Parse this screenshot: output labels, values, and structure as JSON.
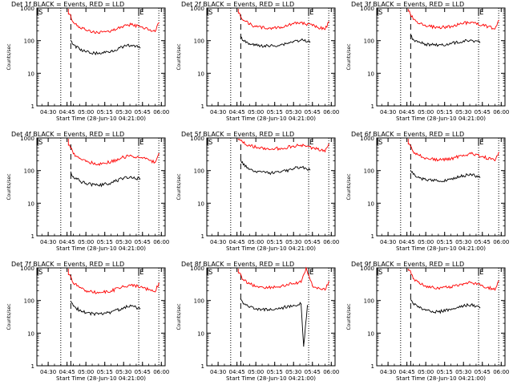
{
  "colors": {
    "events": "#000000",
    "lld": "#ff0000",
    "axes": "#000000"
  },
  "chart_data": [
    {
      "type": "line",
      "title": "Det 1f BLACK = Events, RED = LLD",
      "xlabel": "Start Time (28-Jun-10 04:21:00)",
      "ylabel": "Counts/sec",
      "x_ticks": [
        "04:30",
        "04:45",
        "05:00",
        "05:15",
        "05:30",
        "05:45",
        "06:00"
      ],
      "y_ticks": [
        "1",
        "10",
        "100",
        "1000"
      ],
      "yscale": "log",
      "ylim": [
        1,
        1000
      ],
      "xlim_minutes": [
        0,
        102
      ],
      "markers": {
        "start": "S",
        "end": "E"
      },
      "dotted_lines": [
        "04:40",
        "05:42",
        "05:58"
      ],
      "dashed_line": "04:48",
      "series": [
        {
          "name": "LLD",
          "x": [
            "04:47",
            "04:50",
            "04:55",
            "05:00",
            "05:10",
            "05:20",
            "05:30",
            "05:36",
            "05:45",
            "05:55",
            "05:58"
          ],
          "values": [
            650,
            360,
            260,
            210,
            170,
            200,
            280,
            310,
            260,
            190,
            350
          ]
        },
        {
          "name": "Events",
          "x": [
            "04:48",
            "04:50",
            "04:55",
            "05:00",
            "05:10",
            "05:20",
            "05:30",
            "05:36",
            "05:43"
          ],
          "values": [
            100,
            75,
            55,
            45,
            40,
            48,
            65,
            72,
            60
          ]
        }
      ]
    },
    {
      "type": "line",
      "title": "Det 2f BLACK = Events, RED = LLD",
      "xlabel": "Start Time (28-Jun-10 04:21:00)",
      "ylabel": "Counts/sec",
      "x_ticks": [
        "04:30",
        "04:45",
        "05:00",
        "05:15",
        "05:30",
        "05:45",
        "06:00"
      ],
      "y_ticks": [
        "1",
        "10",
        "100",
        "1000"
      ],
      "yscale": "log",
      "ylim": [
        1,
        1000
      ],
      "xlim_minutes": [
        0,
        102
      ],
      "markers": {
        "start": "S",
        "end": "E"
      },
      "dotted_lines": [
        "04:40",
        "05:42",
        "05:58"
      ],
      "dashed_line": "04:48",
      "series": [
        {
          "name": "LLD",
          "x": [
            "04:47",
            "04:50",
            "04:55",
            "05:00",
            "05:10",
            "05:20",
            "05:30",
            "05:36",
            "05:45",
            "05:55",
            "05:58"
          ],
          "values": [
            700,
            420,
            320,
            270,
            240,
            260,
            330,
            360,
            290,
            220,
            380
          ]
        },
        {
          "name": "Events",
          "x": [
            "04:48",
            "04:50",
            "04:55",
            "05:00",
            "05:10",
            "05:20",
            "05:30",
            "05:36",
            "05:43"
          ],
          "values": [
            130,
            100,
            80,
            72,
            68,
            75,
            95,
            105,
            90
          ]
        }
      ]
    },
    {
      "type": "line",
      "title": "Det 3f BLACK = Events, RED = LLD",
      "xlabel": "Start Time (28-Jun-10 04:21:00)",
      "ylabel": "Counts/sec",
      "x_ticks": [
        "04:30",
        "04:45",
        "05:00",
        "05:15",
        "05:30",
        "05:45",
        "06:00"
      ],
      "y_ticks": [
        "1",
        "10",
        "100",
        "1000"
      ],
      "yscale": "log",
      "ylim": [
        1,
        1000
      ],
      "xlim_minutes": [
        0,
        102
      ],
      "markers": {
        "start": "S",
        "end": "E"
      },
      "dotted_lines": [
        "04:40",
        "05:42",
        "05:58"
      ],
      "dashed_line": "04:48",
      "series": [
        {
          "name": "LLD",
          "x": [
            "04:47",
            "04:50",
            "04:55",
            "05:00",
            "05:10",
            "05:20",
            "05:30",
            "05:36",
            "05:45",
            "05:55",
            "05:58"
          ],
          "values": [
            800,
            450,
            330,
            280,
            250,
            270,
            340,
            370,
            300,
            230,
            420
          ]
        },
        {
          "name": "Events",
          "x": [
            "04:48",
            "04:50",
            "04:55",
            "05:00",
            "05:10",
            "05:20",
            "05:30",
            "05:36",
            "05:43"
          ],
          "values": [
            140,
            110,
            90,
            78,
            72,
            80,
            98,
            105,
            88
          ]
        }
      ]
    },
    {
      "type": "line",
      "title": "Det 4f BLACK = Events, RED = LLD",
      "xlabel": "Start Time (28-Jun-10 04:21:00)",
      "ylabel": "Counts/sec",
      "x_ticks": [
        "04:30",
        "04:45",
        "05:00",
        "05:15",
        "05:30",
        "05:45",
        "06:00"
      ],
      "y_ticks": [
        "1",
        "10",
        "100",
        "1000"
      ],
      "yscale": "log",
      "ylim": [
        1,
        1000
      ],
      "xlim_minutes": [
        0,
        102
      ],
      "markers": {
        "start": "S",
        "end": "E"
      },
      "dotted_lines": [
        "04:40",
        "05:42",
        "05:58"
      ],
      "dashed_line": "04:48",
      "series": [
        {
          "name": "LLD",
          "x": [
            "04:47",
            "04:50",
            "04:55",
            "05:00",
            "05:10",
            "05:20",
            "05:30",
            "05:36",
            "05:45",
            "05:55",
            "05:58"
          ],
          "values": [
            600,
            330,
            240,
            190,
            160,
            185,
            260,
            290,
            240,
            180,
            330
          ]
        },
        {
          "name": "Events",
          "x": [
            "04:48",
            "04:50",
            "04:55",
            "05:00",
            "05:10",
            "05:20",
            "05:30",
            "05:36",
            "05:43"
          ],
          "values": [
            90,
            65,
            48,
            40,
            35,
            42,
            58,
            65,
            55
          ]
        }
      ]
    },
    {
      "type": "line",
      "title": "Det 5f BLACK = Events, RED = LLD",
      "xlabel": "Start Time (28-Jun-10 04:21:00)",
      "ylabel": "Counts/sec",
      "x_ticks": [
        "04:30",
        "04:45",
        "05:00",
        "05:15",
        "05:30",
        "05:45",
        "06:00"
      ],
      "y_ticks": [
        "1",
        "10",
        "100",
        "1000"
      ],
      "yscale": "log",
      "ylim": [
        1,
        1000
      ],
      "xlim_minutes": [
        0,
        102
      ],
      "markers": {
        "start": "S",
        "end": "E"
      },
      "dotted_lines": [
        "04:40",
        "05:42",
        "05:58"
      ],
      "dashed_line": "04:48",
      "series": [
        {
          "name": "LLD",
          "x": [
            "04:47",
            "04:50",
            "04:55",
            "05:00",
            "05:10",
            "05:20",
            "05:30",
            "05:36",
            "05:45",
            "05:55",
            "05:58"
          ],
          "values": [
            900,
            700,
            600,
            520,
            460,
            480,
            560,
            600,
            500,
            380,
            650
          ]
        },
        {
          "name": "Events",
          "x": [
            "04:48",
            "04:50",
            "04:55",
            "05:00",
            "05:10",
            "05:20",
            "05:30",
            "05:36",
            "05:43"
          ],
          "values": [
            210,
            150,
            110,
            92,
            82,
            90,
            115,
            125,
            105
          ]
        }
      ]
    },
    {
      "type": "line",
      "title": "Det 6f BLACK = Events, RED = LLD",
      "xlabel": "Start Time (28-Jun-10 04:21:00)",
      "ylabel": "Counts/sec",
      "x_ticks": [
        "04:30",
        "04:45",
        "05:00",
        "05:15",
        "05:30",
        "05:45",
        "06:00"
      ],
      "y_ticks": [
        "1",
        "10",
        "100",
        "1000"
      ],
      "yscale": "log",
      "ylim": [
        1,
        1000
      ],
      "xlim_minutes": [
        0,
        102
      ],
      "markers": {
        "start": "S",
        "end": "E"
      },
      "dotted_lines": [
        "04:40",
        "05:42",
        "05:58"
      ],
      "dashed_line": "04:48",
      "series": [
        {
          "name": "LLD",
          "x": [
            "04:47",
            "04:50",
            "04:55",
            "05:00",
            "05:10",
            "05:20",
            "05:30",
            "05:36",
            "05:45",
            "05:55",
            "05:58"
          ],
          "values": [
            650,
            380,
            290,
            240,
            210,
            230,
            300,
            330,
            270,
            200,
            360
          ]
        },
        {
          "name": "Events",
          "x": [
            "04:48",
            "04:50",
            "04:55",
            "05:00",
            "05:10",
            "05:20",
            "05:30",
            "05:36",
            "05:43"
          ],
          "values": [
            100,
            78,
            60,
            52,
            48,
            54,
            70,
            76,
            62
          ]
        }
      ]
    },
    {
      "type": "line",
      "title": "Det 7f BLACK = Events, RED = LLD",
      "xlabel": "Start Time (28-Jun-10 04:21:00)",
      "ylabel": "Counts/sec",
      "x_ticks": [
        "04:30",
        "04:45",
        "05:00",
        "05:15",
        "05:30",
        "05:45",
        "06:00"
      ],
      "y_ticks": [
        "1",
        "10",
        "100",
        "1000"
      ],
      "yscale": "log",
      "ylim": [
        1,
        1000
      ],
      "xlim_minutes": [
        0,
        102
      ],
      "markers": {
        "start": "S",
        "end": "E"
      },
      "dotted_lines": [
        "04:40",
        "05:42",
        "05:58"
      ],
      "dashed_line": "04:48",
      "series": [
        {
          "name": "LLD",
          "x": [
            "04:47",
            "04:50",
            "04:55",
            "05:00",
            "05:10",
            "05:20",
            "05:30",
            "05:36",
            "05:45",
            "05:55",
            "05:58"
          ],
          "values": [
            620,
            340,
            250,
            200,
            170,
            195,
            270,
            300,
            250,
            185,
            340
          ]
        },
        {
          "name": "Events",
          "x": [
            "04:48",
            "04:50",
            "04:55",
            "05:00",
            "05:10",
            "05:20",
            "05:30",
            "05:36",
            "05:43"
          ],
          "values": [
            95,
            68,
            50,
            42,
            38,
            44,
            60,
            68,
            56
          ]
        }
      ]
    },
    {
      "type": "line",
      "title": "Det 8f BLACK = Events, RED = LLD",
      "xlabel": "Start Time (28-Jun-10 04:21:00)",
      "ylabel": "Counts/sec",
      "x_ticks": [
        "04:30",
        "04:45",
        "05:00",
        "05:15",
        "05:30",
        "05:45",
        "06:00"
      ],
      "y_ticks": [
        "1",
        "10",
        "100",
        "1000"
      ],
      "yscale": "log",
      "ylim": [
        1,
        1000
      ],
      "xlim_minutes": [
        0,
        102
      ],
      "markers": {
        "start": "S",
        "end": "E"
      },
      "dotted_lines": [
        "04:40",
        "05:42",
        "05:58"
      ],
      "dashed_line": "04:48",
      "series": [
        {
          "name": "LLD",
          "x": [
            "04:47",
            "04:50",
            "04:55",
            "05:00",
            "05:10",
            "05:20",
            "05:30",
            "05:36",
            "05:40",
            "05:45",
            "05:55",
            "05:58"
          ],
          "values": [
            700,
            430,
            330,
            270,
            250,
            270,
            330,
            360,
            1000,
            280,
            210,
            380
          ]
        },
        {
          "name": "Events",
          "x": [
            "04:48",
            "04:50",
            "04:55",
            "05:00",
            "05:10",
            "05:20",
            "05:30",
            "05:36",
            "05:38",
            "05:41"
          ],
          "values": [
            110,
            80,
            62,
            55,
            52,
            58,
            72,
            78,
            4,
            70
          ]
        }
      ]
    },
    {
      "type": "line",
      "title": "Det 9f BLACK = Events, RED = LLD",
      "xlabel": "Start Time (28-Jun-10 04:21:00)",
      "ylabel": "Counts/sec",
      "x_ticks": [
        "04:30",
        "04:45",
        "05:00",
        "05:15",
        "05:30",
        "05:45",
        "06:00"
      ],
      "y_ticks": [
        "1",
        "10",
        "100",
        "1000"
      ],
      "yscale": "log",
      "ylim": [
        1,
        1000
      ],
      "xlim_minutes": [
        0,
        102
      ],
      "markers": {
        "start": "S",
        "end": "E"
      },
      "dotted_lines": [
        "04:40",
        "05:42",
        "05:58"
      ],
      "dashed_line": "04:48",
      "series": [
        {
          "name": "LLD",
          "x": [
            "04:47",
            "04:50",
            "04:55",
            "05:00",
            "05:10",
            "05:20",
            "05:30",
            "05:36",
            "05:45",
            "05:55",
            "05:58"
          ],
          "values": [
            850,
            470,
            340,
            280,
            240,
            260,
            330,
            360,
            290,
            210,
            400
          ]
        },
        {
          "name": "Events",
          "x": [
            "04:48",
            "04:50",
            "04:55",
            "05:00",
            "05:10",
            "05:20",
            "05:30",
            "05:36",
            "05:43"
          ],
          "values": [
            105,
            80,
            60,
            50,
            45,
            52,
            68,
            74,
            60
          ]
        }
      ]
    }
  ]
}
